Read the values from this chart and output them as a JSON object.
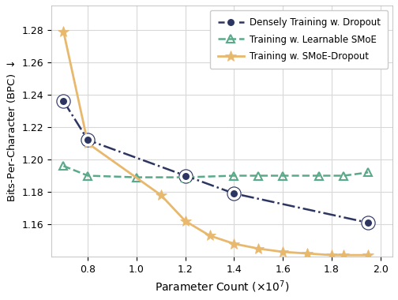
{
  "dense_x": [
    0.7,
    0.8,
    1.2,
    1.4,
    1.95
  ],
  "dense_y": [
    1.236,
    1.212,
    1.19,
    1.179,
    1.161
  ],
  "smoe_x": [
    0.7,
    0.8,
    1.0,
    1.2,
    1.4,
    1.5,
    1.6,
    1.75,
    1.85,
    1.95
  ],
  "smoe_y": [
    1.196,
    1.19,
    1.189,
    1.189,
    1.19,
    1.19,
    1.19,
    1.19,
    1.19,
    1.192
  ],
  "smoed_x": [
    0.7,
    0.8,
    1.1,
    1.2,
    1.3,
    1.4,
    1.5,
    1.6,
    1.7,
    1.8,
    1.85,
    1.95
  ],
  "smoed_y": [
    1.279,
    1.21,
    1.178,
    1.162,
    1.153,
    1.148,
    1.145,
    1.143,
    1.142,
    1.141,
    1.141,
    1.141
  ],
  "dense_color": "#2d3561",
  "smoe_color": "#5aaa8a",
  "smoed_color": "#e8b86d",
  "xlabel": "Parameter Count ($\\times10^7$)",
  "ylabel": "Bits-Per-Character (BPC) $\\downarrow$",
  "xlim": [
    0.65,
    2.05
  ],
  "ylim": [
    1.14,
    1.295
  ],
  "xticks": [
    0.8,
    1.0,
    1.2,
    1.4,
    1.6,
    1.8,
    2.0
  ],
  "yticks": [
    1.16,
    1.18,
    1.2,
    1.22,
    1.24,
    1.26,
    1.28
  ],
  "legend_labels": [
    "Densely Training w. Dropout",
    "Training w. Learnable SMoE",
    "Training w. SMoE-Dropout"
  ],
  "bg_color": "#ffffff",
  "grid_color": "#d8d8d8",
  "figsize": [
    5.04,
    3.8
  ],
  "dpi": 100
}
